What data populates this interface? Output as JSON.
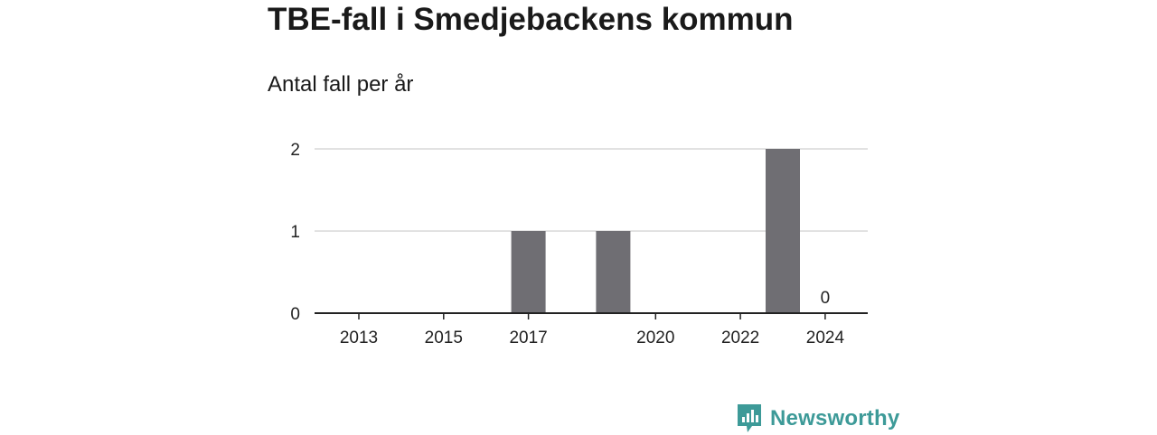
{
  "chart_data": {
    "type": "bar",
    "title": "TBE-fall i Smedjebackens kommun",
    "subtitle": "Antal fall per år",
    "categories": [
      "2013",
      "2014",
      "2015",
      "2016",
      "2017",
      "2018",
      "2019",
      "2020",
      "2021",
      "2022",
      "2023",
      "2024"
    ],
    "values": [
      0,
      0,
      0,
      0,
      1,
      0,
      1,
      0,
      0,
      0,
      2,
      0
    ],
    "x_tick_labels": [
      "2013",
      "2015",
      "2017",
      "2020",
      "2022",
      "2024"
    ],
    "y_ticks": [
      "0",
      "1",
      "2"
    ],
    "ylim": [
      0,
      2
    ],
    "xlabel": "",
    "ylabel": "",
    "grid": true,
    "annotations": [
      {
        "category": "2024",
        "text": "0"
      }
    ],
    "colors": {
      "bar": "#6f6e73",
      "grid": "#d9d9d9",
      "axis": "#222222"
    }
  },
  "brand": {
    "name": "Newsworthy",
    "icon": "bar-chart-icon",
    "color": "#3d9a98"
  }
}
